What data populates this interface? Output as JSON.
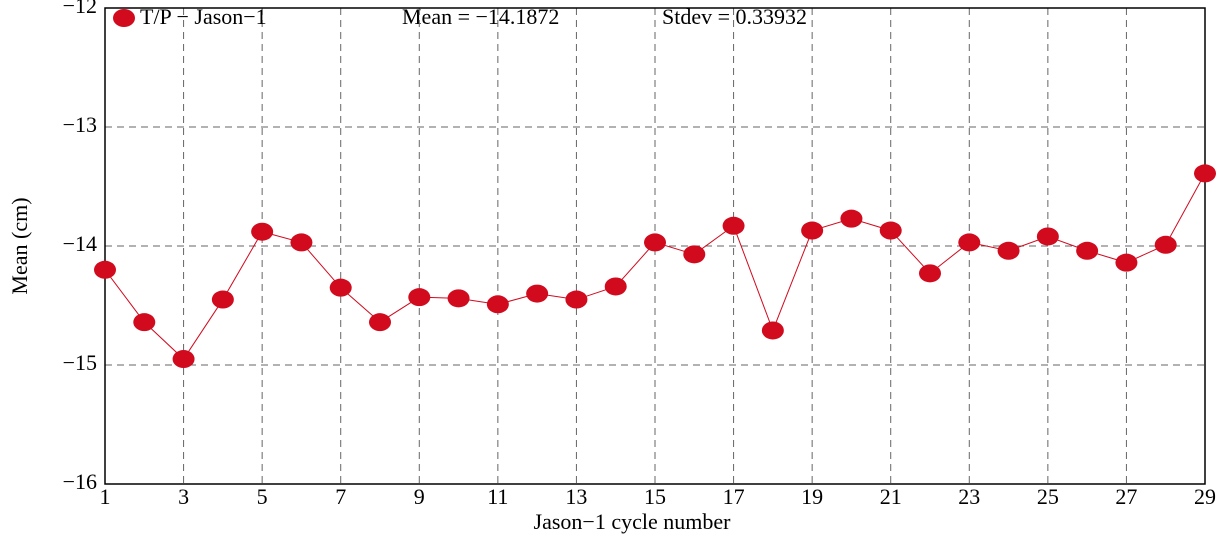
{
  "chart_data": {
    "type": "line",
    "xlabel": "Jason−1 cycle number",
    "ylabel": "Mean (cm)",
    "annotations": [
      "Mean = −14.1872",
      "Stdev = 0.33932"
    ],
    "x": [
      1,
      2,
      3,
      4,
      5,
      6,
      7,
      8,
      9,
      10,
      11,
      12,
      13,
      14,
      15,
      16,
      17,
      18,
      19,
      20,
      21,
      22,
      23,
      24,
      25,
      26,
      27,
      28,
      29
    ],
    "series": [
      {
        "name": "T/P − Jason−1",
        "color": "#d10a1e",
        "values": [
          -14.2,
          -14.64,
          -14.95,
          -14.45,
          -13.88,
          -13.97,
          -14.35,
          -14.64,
          -14.43,
          -14.44,
          -14.49,
          -14.4,
          -14.45,
          -14.34,
          -13.97,
          -14.07,
          -13.83,
          -14.71,
          -13.87,
          -13.77,
          -13.87,
          -14.23,
          -13.97,
          -14.04,
          -13.92,
          -14.04,
          -14.14,
          -13.99,
          -13.39
        ]
      }
    ],
    "xlim": [
      1,
      29
    ],
    "xticks": [
      1,
      3,
      5,
      7,
      9,
      11,
      13,
      15,
      17,
      19,
      21,
      23,
      25,
      27,
      29
    ],
    "ylim": [
      -16,
      -12
    ],
    "yticks": [
      {
        "value": -16,
        "label": "−16"
      },
      {
        "value": -15,
        "label": "−15"
      },
      {
        "value": -14,
        "label": "−14"
      },
      {
        "value": -13,
        "label": "−13"
      },
      {
        "value": -12,
        "label": "−12"
      }
    ],
    "grid": true,
    "legend": "upper left"
  }
}
